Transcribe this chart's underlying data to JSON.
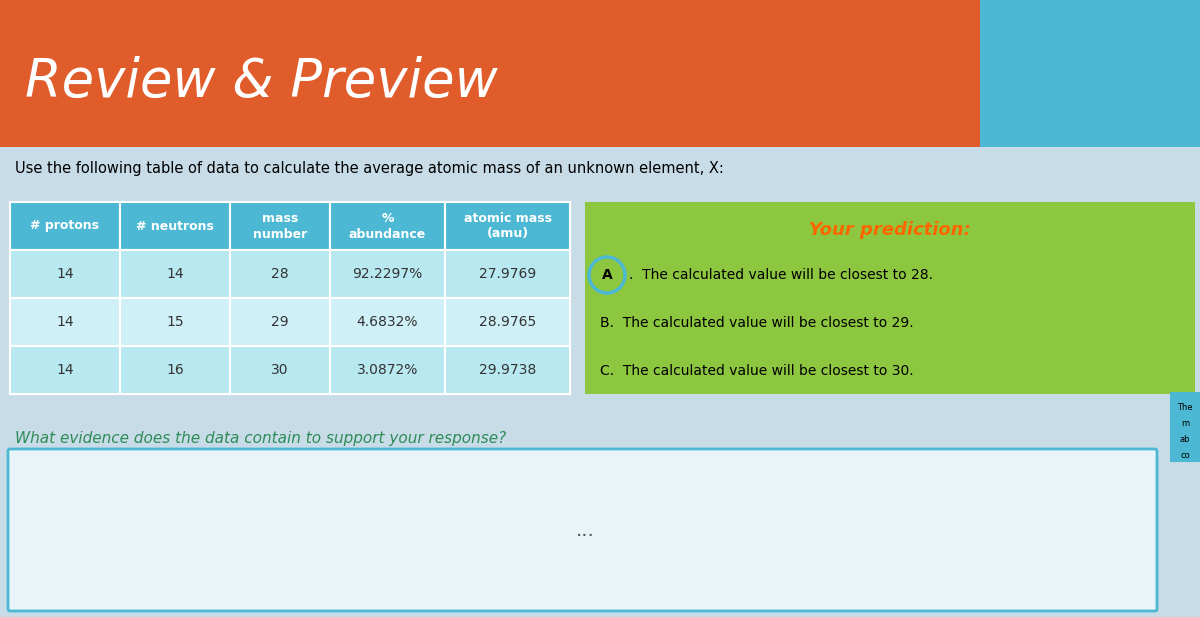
{
  "title": "Review & Preview",
  "subtitle": "Use the following table of data to calculate the average atomic mass of an unknown element, X:",
  "header_bg": "#4db8d4",
  "header_text": "#ffffff",
  "row_bg_even": "#b8e8f0",
  "row_bg_odd": "#d0f0f8",
  "table_headers": [
    "# protons",
    "# neutrons",
    "mass\nnumber",
    "%\nabundance",
    "atomic mass\n(amu)"
  ],
  "table_data": [
    [
      "14",
      "14",
      "28",
      "92.2297%",
      "27.9769"
    ],
    [
      "14",
      "15",
      "29",
      "4.6832%",
      "28.9765"
    ],
    [
      "14",
      "16",
      "30",
      "3.0872%",
      "29.9738"
    ]
  ],
  "prediction_bg": "#8dc63f",
  "prediction_title": "Your prediction:",
  "prediction_title_color": "#ff6600",
  "prediction_options": [
    "A.  The calculated value will be closest to 28.",
    "B.  The calculated value will be closest to 29.",
    "C.  The calculated value will be closest to 30."
  ],
  "prediction_selected": 0,
  "circle_color": "#4db8d4",
  "evidence_question": "What evidence does the data contain to support your response?",
  "evidence_question_color": "#2e8b57",
  "answer_box_bg": "#e8f4f8",
  "answer_box_border": "#4db8d4",
  "dots": "...",
  "header_bar_bg": "#e05c2a",
  "header_bar_height": 0.22,
  "blue_box_bg": "#4db8d4",
  "side_box_bg": "#4db8d4",
  "bg_color": "#c8dce8"
}
